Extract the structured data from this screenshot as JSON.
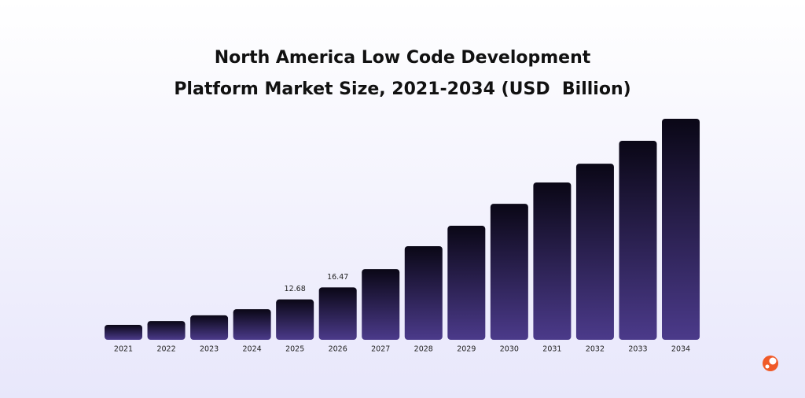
{
  "chart_data": {
    "type": "bar",
    "title": [
      "North America Low Code Development",
      "Platform Market Size, 2021-2034 (USD  Billion)"
    ],
    "categories": [
      "2021",
      "2022",
      "2023",
      "2024",
      "2025",
      "2026",
      "2027",
      "2028",
      "2029",
      "2030",
      "2031",
      "2032",
      "2033",
      "2034"
    ],
    "values": [
      4.7,
      5.9,
      7.7,
      9.6,
      12.68,
      16.47,
      22.2,
      29.4,
      35.8,
      42.7,
      49.4,
      55.3,
      62.5,
      69.4
    ],
    "value_labels": [
      null,
      null,
      null,
      null,
      "12.68",
      "16.47",
      null,
      null,
      null,
      null,
      null,
      null,
      null,
      null
    ],
    "color": [
      "#4b3a8a",
      "#0a0716"
    ]
  }
}
